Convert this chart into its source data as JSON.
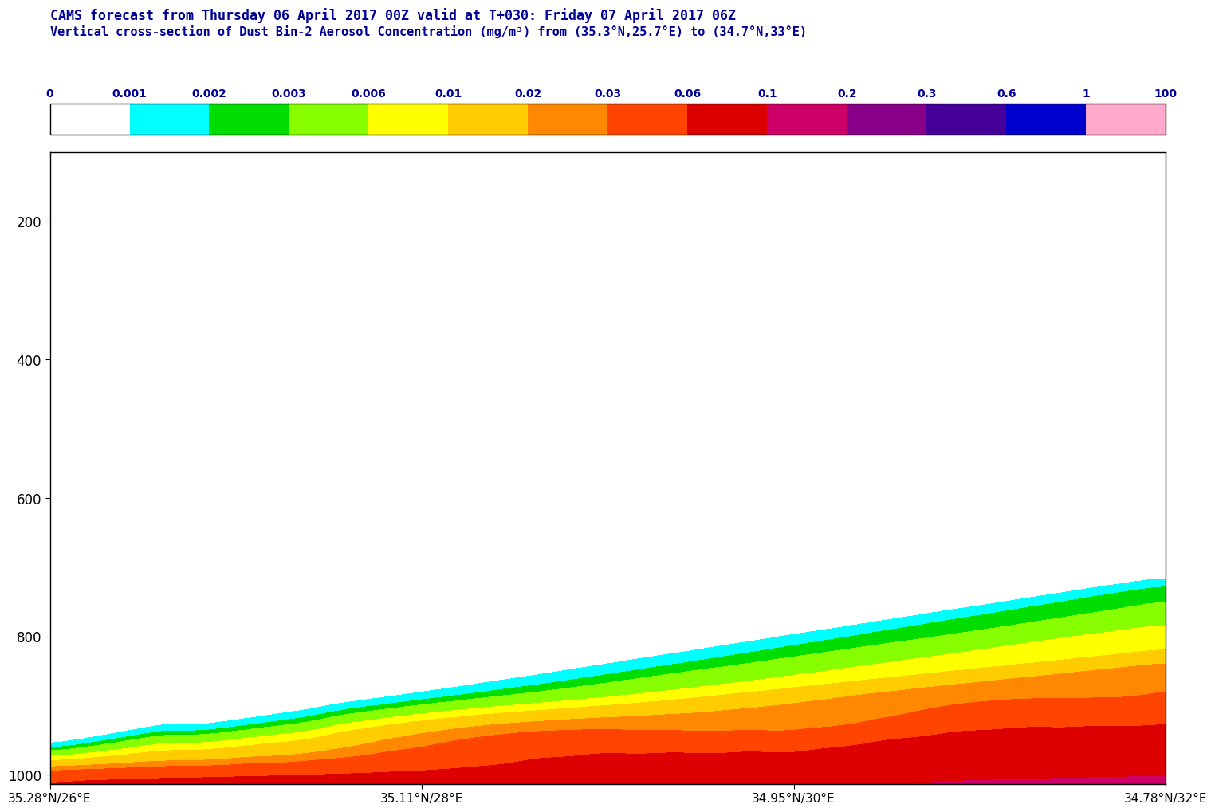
{
  "title1": "CAMS forecast from Thursday 06 April 2017 00Z valid at T+030: Friday 07 April 2017 06Z",
  "title2": "Vertical cross-section of Dust Bin-2 Aerosol Concentration (mg/m³) from (35.3°N,25.7°E) to (34.7°N,33°E)",
  "xlabel_ticks": [
    "35.28°N/26°E",
    "35.11°N/28°E",
    "34.95°N/30°E",
    "34.78°N/32°E"
  ],
  "ylabel_ticks": [
    200,
    400,
    600,
    800,
    1000
  ],
  "colorbar_levels": [
    0,
    0.001,
    0.002,
    0.003,
    0.006,
    0.01,
    0.02,
    0.03,
    0.06,
    0.1,
    0.2,
    0.3,
    0.6,
    1,
    100
  ],
  "colorbar_colors": [
    "#ffffff",
    "#00ffff",
    "#00dd00",
    "#88ff00",
    "#ffff00",
    "#ffcc00",
    "#ff8800",
    "#ff4400",
    "#dd0000",
    "#cc0066",
    "#880088",
    "#440099",
    "#0000cc",
    "#ffaacc"
  ],
  "title_color": "#000099",
  "axis_label_color": "#000000",
  "background_color": "#ffffff"
}
